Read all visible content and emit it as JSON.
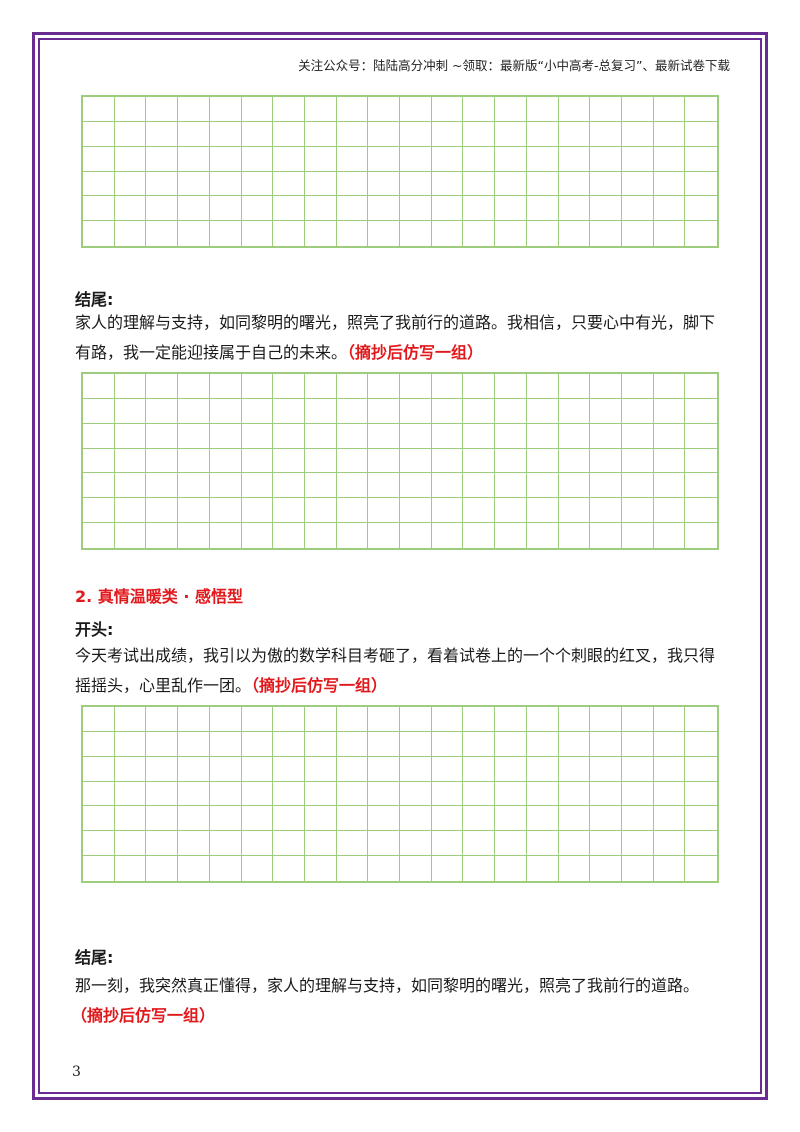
{
  "header": {
    "text": "关注公众号：陆陆高分冲刺 ~领取：最新版“小中高考-总复习”、最新试卷下载"
  },
  "grids": [
    {
      "rows": 6,
      "cols": 20
    },
    {
      "rows": 7,
      "cols": 20
    },
    {
      "rows": 7,
      "cols": 20
    }
  ],
  "section1_end": {
    "label": "结尾:",
    "line1": "家人的理解与支持，如同黎明的曙光，照亮了我前行的道路。我相信，只要心中有光，脚下",
    "line2": "有路，我一定能迎接属于自己的未来。",
    "note": "（摘抄后仿写一组）"
  },
  "section2": {
    "title": "2. 真情温暖类 · 感悟型",
    "start_label": "开头:",
    "start_line1": "今天考试出成绩，我引以为傲的数学科目考砸了，看着试卷上的一个个刺眼的红叉，我只得",
    "start_line2": "摇摇头，心里乱作一团。",
    "start_note": "（摘抄后仿写一组）",
    "end_label": "结尾:",
    "end_line1": "那一刻，我突然真正懂得，家人的理解与支持，如同黎明的曙光，照亮了我前行的道路。",
    "end_note": "（摘抄后仿写一组）"
  },
  "page_number": "3",
  "colors": {
    "border": "#6a2c91",
    "grid": "#9ccc7c",
    "accent": "#e2191c"
  }
}
